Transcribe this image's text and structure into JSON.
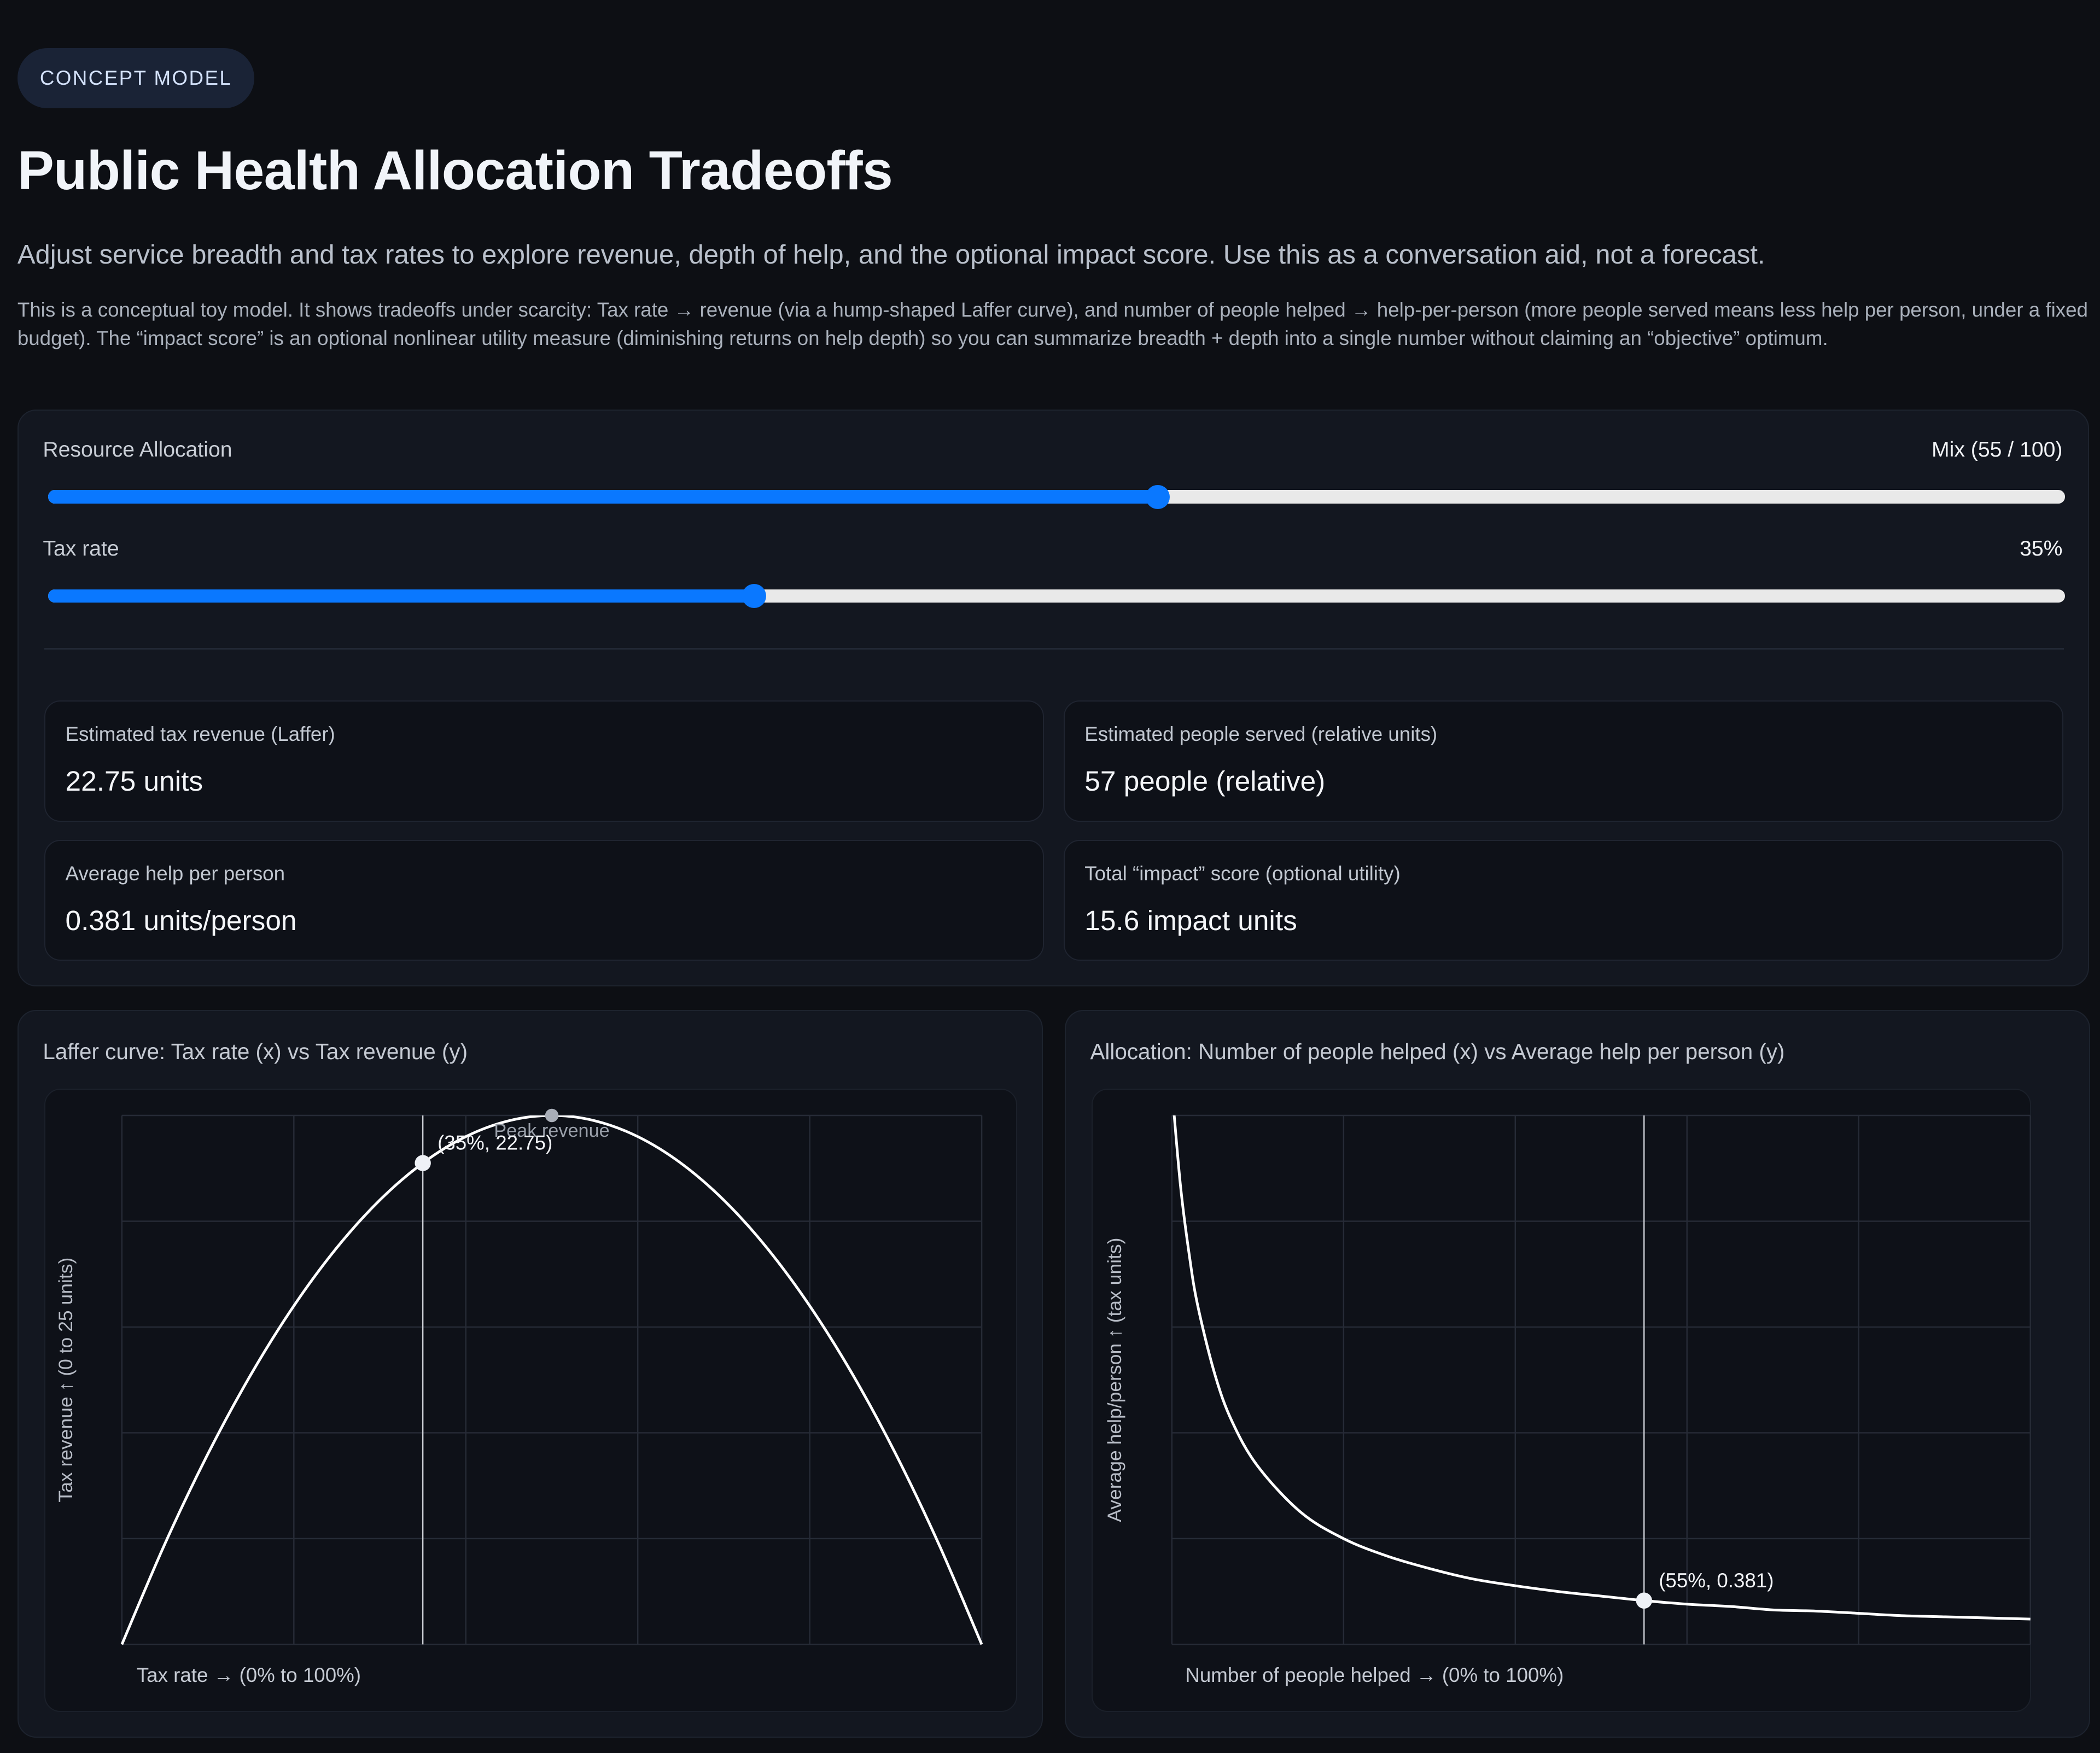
{
  "badge": "CONCEPT MODEL",
  "title": "Public Health Allocation Tradeoffs",
  "subtitle": "Adjust service breadth and tax rates to explore revenue, depth of help, and the optional impact score. Use this as a conversation aid, not a forecast.",
  "description": "This is a conceptual toy model. It shows tradeoffs under scarcity: Tax rate → revenue (via a hump-shaped Laffer curve), and number of people helped → help-per-person (more people served means less help per person, under a fixed budget). The “impact score” is an optional nonlinear utility measure (diminishing returns on help depth) so you can summarize breadth + depth into a single number without claiming an “objective” optimum.",
  "controls": {
    "allocation": {
      "label": "Resource Allocation",
      "value_text": "Mix (55 / 100)",
      "value": 55,
      "min": 0,
      "max": 100
    },
    "tax": {
      "label": "Tax rate",
      "value_text": "35%",
      "value": 35,
      "min": 0,
      "max": 100
    },
    "accent": "#0a78ff"
  },
  "metrics": [
    {
      "label": "Estimated tax revenue (Laffer)",
      "value": "22.75 units"
    },
    {
      "label": "Estimated people served (relative units)",
      "value": "57 people (relative)"
    },
    {
      "label": "Average help per person",
      "value": "0.381 units/person"
    },
    {
      "label": "Total “impact” score (optional utility)",
      "value": "15.6 impact units"
    }
  ],
  "chart_data": [
    {
      "type": "line",
      "title": "Laffer curve: Tax rate (x) vs Tax revenue (y)",
      "xlabel": "Tax rate → (0% to 100%)",
      "ylabel": "Tax revenue ↑ (0 to 25 units)",
      "xlim": [
        0,
        100
      ],
      "ylim": [
        0,
        25
      ],
      "grid": true,
      "x": [
        0,
        5,
        10,
        15,
        20,
        25,
        30,
        35,
        40,
        45,
        50,
        55,
        60,
        65,
        70,
        75,
        80,
        85,
        90,
        95,
        100
      ],
      "y": [
        0,
        4.75,
        9,
        12.75,
        16,
        18.75,
        21,
        22.75,
        24,
        24.75,
        25,
        24.75,
        24,
        22.75,
        21,
        18.75,
        16,
        12.75,
        9,
        4.75,
        0
      ],
      "marker": {
        "x": 35,
        "y": 22.75,
        "label": "(35%, 22.75)"
      },
      "peak": {
        "x": 50,
        "y": 25,
        "label": "Peak revenue"
      }
    },
    {
      "type": "line",
      "title": "Allocation: Number of people helped (x) vs Average help per person (y)",
      "xlabel": "Number of people helped → (0% to 100%)",
      "ylabel": "Average help/person ↑ (tax units)",
      "xlim": [
        0,
        100
      ],
      "ylim": [
        0,
        4.6
      ],
      "grid": true,
      "x": [
        0,
        1,
        2,
        3,
        5,
        7,
        10,
        15,
        20,
        25,
        30,
        35,
        40,
        45,
        50,
        55,
        60,
        65,
        70,
        75,
        80,
        85,
        90,
        95,
        100
      ],
      "y": [
        4.84,
        3.99,
        3.4,
        2.95,
        2.35,
        1.94,
        1.55,
        1.15,
        0.92,
        0.77,
        0.66,
        0.57,
        0.51,
        0.46,
        0.42,
        0.381,
        0.35,
        0.33,
        0.3,
        0.29,
        0.27,
        0.25,
        0.24,
        0.23,
        0.22
      ],
      "marker": {
        "x": 55,
        "y": 0.381,
        "label": "(55%, 0.381)"
      }
    }
  ]
}
